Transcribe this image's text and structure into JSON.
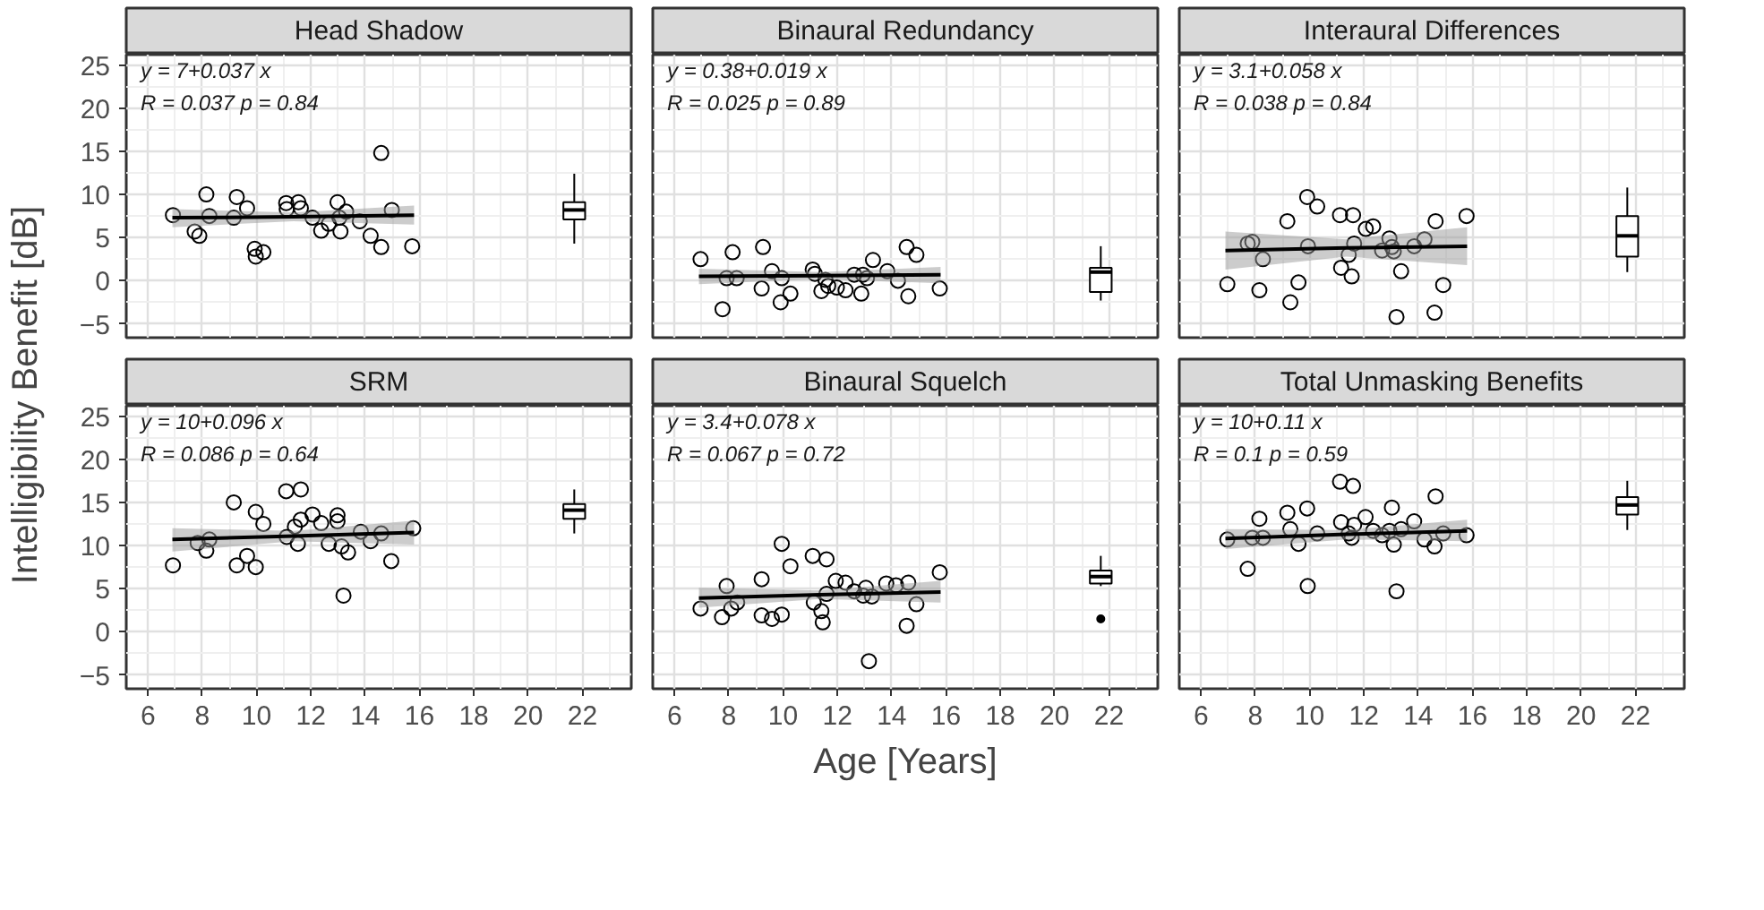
{
  "chart_data": [
    {
      "type": "scatter",
      "title": "Head Shadow",
      "ylabel": "Intelligibility Benefit [dB]",
      "xlim": [
        5.2,
        23.8
      ],
      "xticks": [
        6,
        8,
        10,
        12,
        14,
        16,
        18,
        20,
        22
      ],
      "ylim": [
        -6.6,
        26.2
      ],
      "yticks": [
        -5,
        0,
        5,
        10,
        15,
        20,
        25
      ],
      "grid": true,
      "tick_labels": "y",
      "annotations": [
        "y = 7+0.037 x",
        "R = 0.037  p = 0.84"
      ],
      "series": [
        {
          "marker": "circle",
          "color": "#000000",
          "x": [
            6.92,
            7.72,
            7.89,
            8.15,
            8.26,
            9.16,
            9.27,
            9.65,
            9.93,
            9.97,
            10.25,
            11.09,
            11.11,
            11.54,
            11.63,
            12.06,
            12.38,
            12.66,
            12.98,
            13.05,
            13.09,
            13.3,
            13.8,
            14.2,
            14.59,
            14.59,
            14.98,
            15.73
          ],
          "values": [
            7.6,
            5.7,
            5.2,
            10.0,
            7.5,
            7.3,
            9.7,
            8.4,
            3.7,
            2.8,
            3.3,
            9.0,
            8.3,
            9.1,
            8.4,
            7.3,
            5.8,
            6.6,
            9.1,
            7.3,
            5.7,
            8.0,
            6.9,
            5.2,
            14.8,
            3.9,
            8.2,
            4.0
          ]
        },
        {
          "type": "line",
          "color": "#000000",
          "x": [
            6.9,
            11.35,
            15.8
          ],
          "values": [
            7.3,
            7.4,
            7.6
          ],
          "lower": [
            6.2,
            6.9,
            6.5
          ],
          "upper": [
            8.3,
            7.9,
            8.7
          ]
        },
        {
          "type": "box",
          "color": "#000000",
          "x": [
            21.7
          ],
          "boxes": [
            {
              "low": 4.3,
              "q1": 7.1,
              "median": 8.2,
              "q3": 9.1,
              "high": 12.4
            }
          ]
        }
      ]
    },
    {
      "type": "scatter",
      "title": "Binaural Redundancy",
      "xlim": [
        5.2,
        23.8
      ],
      "xticks": [
        6,
        8,
        10,
        12,
        14,
        16,
        18,
        20,
        22
      ],
      "ylim": [
        -6.6,
        26.2
      ],
      "yticks": [
        -5,
        0,
        5,
        10,
        15,
        20,
        25
      ],
      "grid": true,
      "tick_labels": false,
      "annotations": [
        "y = 0.38+0.019 x",
        "R = 0.025  p = 0.89"
      ],
      "series": [
        {
          "marker": "circle",
          "color": "#000000",
          "x": [
            6.96,
            7.77,
            7.92,
            8.14,
            8.29,
            9.21,
            9.26,
            9.59,
            9.91,
            9.95,
            10.27,
            11.09,
            11.17,
            11.41,
            11.56,
            11.66,
            11.98,
            12.3,
            12.62,
            12.88,
            12.94,
            13.09,
            13.31,
            13.84,
            14.23,
            14.55,
            14.61,
            14.91,
            15.77
          ],
          "values": [
            2.5,
            -3.3,
            0.3,
            3.3,
            0.3,
            -0.9,
            3.9,
            1.1,
            -2.5,
            0.3,
            -1.5,
            1.3,
            0.8,
            -1.2,
            0.1,
            -0.6,
            -0.8,
            -1.1,
            0.7,
            -1.5,
            0.7,
            0.3,
            2.4,
            1.1,
            0.0,
            3.9,
            -1.8,
            3.0,
            -0.9
          ]
        },
        {
          "type": "line",
          "color": "#000000",
          "x": [
            6.9,
            11.35,
            15.8
          ],
          "values": [
            0.5,
            0.6,
            0.7
          ],
          "lower": [
            -0.4,
            0.2,
            -0.3
          ],
          "upper": [
            1.4,
            1.0,
            1.6
          ]
        },
        {
          "type": "box",
          "color": "#000000",
          "x": [
            21.7
          ],
          "boxes": [
            {
              "low": -2.3,
              "q1": -1.3,
              "median": 1.0,
              "q3": 1.5,
              "high": 4.0
            }
          ]
        }
      ]
    },
    {
      "type": "scatter",
      "title": "Interaural Differences",
      "xlim": [
        5.2,
        23.8
      ],
      "xticks": [
        6,
        8,
        10,
        12,
        14,
        16,
        18,
        20,
        22
      ],
      "ylim": [
        -6.6,
        26.2
      ],
      "yticks": [
        -5,
        0,
        5,
        10,
        15,
        20,
        25
      ],
      "grid": true,
      "tick_labels": false,
      "annotations": [
        "y = 3.1+0.058 x",
        "R = 0.038  p = 0.84"
      ],
      "series": [
        {
          "marker": "circle",
          "color": "#000000",
          "x": [
            6.97,
            7.72,
            7.89,
            8.15,
            8.28,
            9.18,
            9.29,
            9.59,
            9.91,
            9.94,
            10.28,
            11.12,
            11.16,
            11.44,
            11.55,
            11.6,
            11.64,
            12.07,
            12.34,
            12.67,
            12.94,
            13.03,
            13.1,
            13.2,
            13.37,
            13.85,
            14.23,
            14.6,
            14.64,
            14.92,
            15.78
          ],
          "values": [
            -0.4,
            4.3,
            4.5,
            -1.1,
            2.5,
            6.9,
            -2.5,
            -0.2,
            9.7,
            4.0,
            8.6,
            7.6,
            1.5,
            3.0,
            0.5,
            7.6,
            4.3,
            6.0,
            6.3,
            3.5,
            4.9,
            3.9,
            3.4,
            -4.2,
            1.1,
            4.0,
            4.8,
            -3.7,
            6.9,
            -0.5,
            7.5
          ]
        },
        {
          "type": "line",
          "color": "#000000",
          "x": [
            6.9,
            11.35,
            15.8
          ],
          "values": [
            3.5,
            3.8,
            4.0
          ],
          "lower": [
            1.3,
            2.8,
            1.8
          ],
          "upper": [
            5.7,
            4.8,
            6.2
          ]
        },
        {
          "type": "box",
          "color": "#000000",
          "x": [
            21.7
          ],
          "boxes": [
            {
              "low": 1.0,
              "q1": 2.8,
              "median": 5.2,
              "q3": 7.5,
              "high": 10.8
            }
          ]
        }
      ]
    },
    {
      "type": "scatter",
      "title": "SRM",
      "xlim": [
        5.2,
        23.8
      ],
      "xticks": [
        6,
        8,
        10,
        12,
        14,
        16,
        18,
        20,
        22
      ],
      "ylim": [
        -6.6,
        26.2
      ],
      "yticks": [
        -5,
        0,
        5,
        10,
        15,
        20,
        25
      ],
      "grid": true,
      "annotations": [
        "y = 10+0.096 x",
        "R = 0.086  p = 0.64"
      ],
      "series": [
        {
          "marker": "circle",
          "color": "#000000",
          "x": [
            6.92,
            7.83,
            8.15,
            8.26,
            9.16,
            9.27,
            9.65,
            9.97,
            9.97,
            10.25,
            11.09,
            11.11,
            11.41,
            11.52,
            11.63,
            11.63,
            12.06,
            12.38,
            12.66,
            12.98,
            12.98,
            13.13,
            13.2,
            13.37,
            13.84,
            14.2,
            14.59,
            14.96,
            15.77
          ],
          "values": [
            7.7,
            10.3,
            9.4,
            10.7,
            15.0,
            7.7,
            8.8,
            13.9,
            7.5,
            12.5,
            16.3,
            11.0,
            12.2,
            10.2,
            16.5,
            13.0,
            13.6,
            12.6,
            10.2,
            13.5,
            12.8,
            9.9,
            4.2,
            9.2,
            11.6,
            10.5,
            11.4,
            8.2,
            12.0
          ]
        },
        {
          "type": "line",
          "color": "#000000",
          "x": [
            6.9,
            11.35,
            15.8
          ],
          "values": [
            10.7,
            11.1,
            11.5
          ],
          "lower": [
            9.3,
            10.5,
            10.1
          ],
          "upper": [
            12.0,
            11.7,
            12.9
          ]
        },
        {
          "type": "box",
          "color": "#000000",
          "x": [
            21.7
          ],
          "boxes": [
            {
              "low": 11.4,
              "q1": 13.1,
              "median": 14.1,
              "q3": 14.8,
              "high": 16.5
            }
          ]
        }
      ]
    },
    {
      "type": "scatter",
      "title": "Binaural Squelch",
      "xlabel": "Age [Years]",
      "xlim": [
        5.2,
        23.8
      ],
      "xticks": [
        6,
        8,
        10,
        12,
        14,
        16,
        18,
        20,
        22
      ],
      "ylim": [
        -6.6,
        26.2
      ],
      "yticks": [
        -5,
        0,
        5,
        10,
        15,
        20,
        25
      ],
      "grid": true,
      "tick_labels": "x",
      "annotations": [
        "y = 3.4+0.078 x",
        "R = 0.067  p = 0.72"
      ],
      "series": [
        {
          "marker": "circle",
          "color": "#000000",
          "x": [
            6.96,
            7.75,
            7.92,
            8.09,
            8.31,
            9.21,
            9.21,
            9.59,
            9.95,
            9.95,
            10.27,
            11.09,
            11.13,
            11.41,
            11.46,
            11.6,
            11.6,
            11.94,
            12.3,
            12.62,
            12.95,
            13.05,
            13.27,
            13.16,
            13.8,
            14.16,
            14.55,
            14.61,
            14.91,
            15.77
          ],
          "values": [
            2.7,
            1.7,
            5.3,
            2.7,
            3.4,
            6.1,
            1.9,
            1.5,
            10.2,
            2.0,
            7.6,
            8.8,
            3.4,
            2.4,
            1.1,
            8.4,
            4.4,
            5.9,
            5.7,
            4.7,
            4.2,
            5.1,
            4.1,
            -3.4,
            5.6,
            5.4,
            0.7,
            5.7,
            3.2,
            6.9
          ]
        },
        {
          "type": "line",
          "color": "#000000",
          "x": [
            6.9,
            11.35,
            15.8
          ],
          "values": [
            3.9,
            4.3,
            4.6
          ],
          "lower": [
            2.8,
            3.8,
            3.4
          ],
          "upper": [
            5.1,
            4.8,
            5.9
          ]
        },
        {
          "type": "box",
          "color": "#000000",
          "x": [
            21.7
          ],
          "boxes": [
            {
              "low": 5.3,
              "q1": 5.6,
              "median": 6.4,
              "q3": 7.1,
              "high": 8.8,
              "outliers": [
                1.5
              ]
            }
          ]
        }
      ]
    },
    {
      "type": "scatter",
      "title": "Total Unmasking Benefits",
      "xlim": [
        5.2,
        23.8
      ],
      "xticks": [
        6,
        8,
        10,
        12,
        14,
        16,
        18,
        20,
        22
      ],
      "ylim": [
        -6.6,
        26.2
      ],
      "yticks": [
        -5,
        0,
        5,
        10,
        15,
        20,
        25
      ],
      "grid": true,
      "tick_labels": "x",
      "annotations": [
        "y = 10+0.11 x",
        "R = 0.1  p = 0.59"
      ],
      "series": [
        {
          "marker": "circle",
          "color": "#000000",
          "x": [
            6.97,
            7.72,
            7.89,
            8.15,
            8.28,
            9.18,
            9.29,
            9.59,
            9.91,
            9.93,
            10.28,
            11.12,
            11.16,
            11.44,
            11.55,
            11.6,
            11.64,
            12.06,
            12.34,
            12.67,
            12.94,
            13.03,
            13.1,
            13.2,
            13.37,
            13.85,
            14.23,
            14.6,
            14.64,
            14.92,
            15.78
          ],
          "values": [
            10.7,
            7.3,
            10.9,
            13.1,
            10.9,
            13.8,
            11.9,
            10.2,
            14.3,
            5.3,
            11.4,
            17.4,
            12.7,
            11.4,
            10.9,
            16.9,
            12.4,
            13.3,
            11.7,
            11.2,
            11.7,
            14.4,
            10.1,
            4.7,
            11.9,
            12.8,
            10.7,
            9.9,
            15.7,
            11.4,
            11.2
          ]
        },
        {
          "type": "line",
          "color": "#000000",
          "x": [
            6.9,
            11.35,
            15.8
          ],
          "values": [
            10.8,
            11.3,
            11.7
          ],
          "lower": [
            9.6,
            10.7,
            10.5
          ],
          "upper": [
            11.9,
            11.8,
            13.0
          ]
        },
        {
          "type": "box",
          "color": "#000000",
          "x": [
            21.7
          ],
          "boxes": [
            {
              "low": 11.8,
              "q1": 13.6,
              "median": 14.7,
              "q3": 15.6,
              "high": 17.5
            }
          ]
        }
      ]
    }
  ]
}
